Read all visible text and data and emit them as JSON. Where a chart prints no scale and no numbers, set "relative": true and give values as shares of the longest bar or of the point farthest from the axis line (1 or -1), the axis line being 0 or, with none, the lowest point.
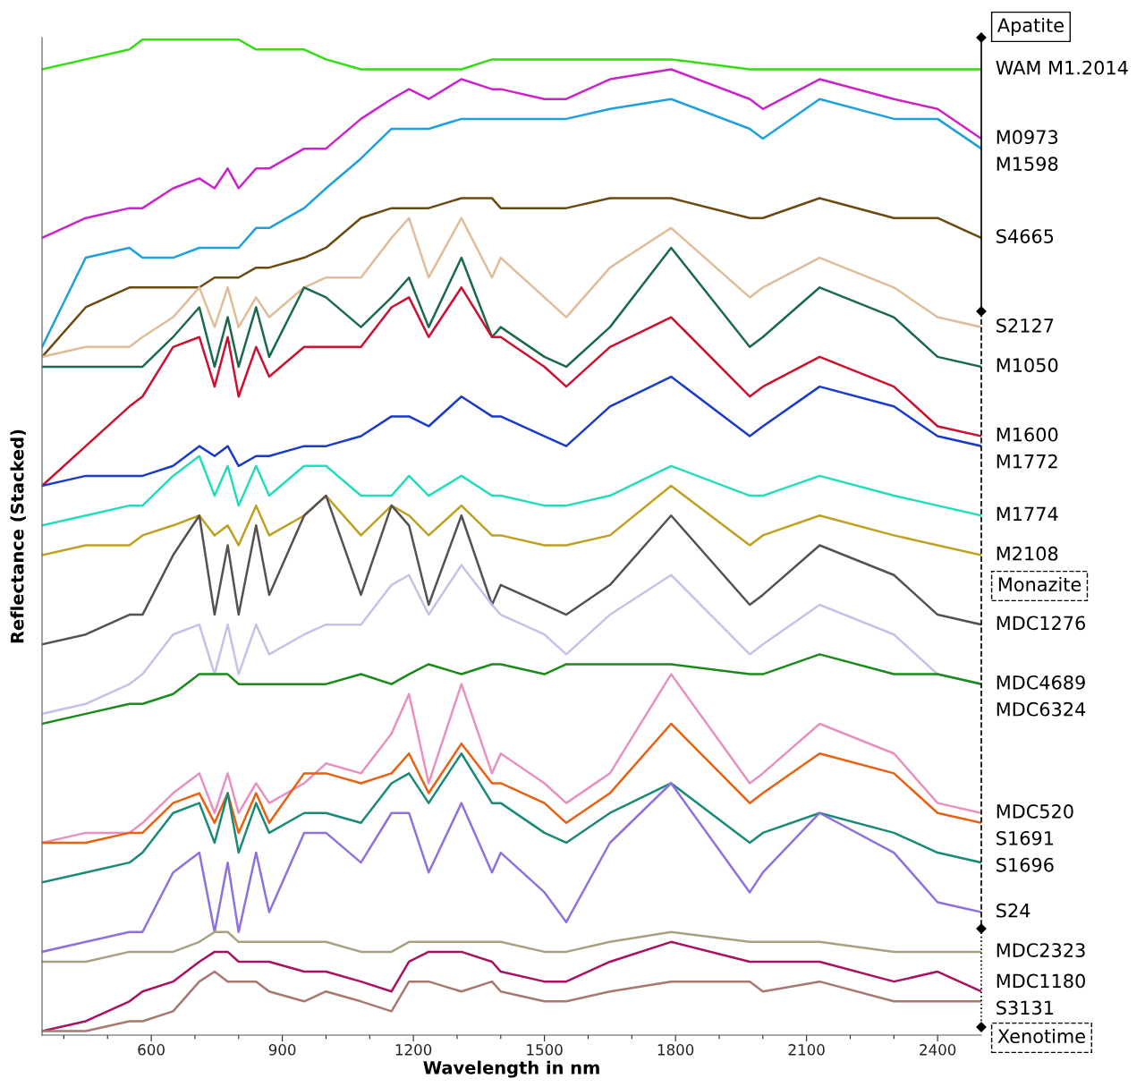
{
  "chart_data": {
    "type": "line",
    "relative": true,
    "xlabel": "Wavelength in nm",
    "ylabel": "Reflectance (Stacked)",
    "xlim": [
      350,
      2500
    ],
    "xticks": [
      {
        "value": 400,
        "label": null
      },
      {
        "value": 500,
        "label": null
      },
      600,
      {
        "value": 700,
        "label": null
      },
      {
        "value": 800,
        "label": null
      },
      900,
      {
        "value": 1000,
        "label": null
      },
      {
        "value": 1100,
        "label": null
      },
      1200,
      {
        "value": 1300,
        "label": null
      },
      {
        "value": 1400,
        "label": null
      },
      1500,
      {
        "value": 1600,
        "label": null
      },
      {
        "value": 1700,
        "label": null
      },
      1800,
      {
        "value": 1900,
        "label": null
      },
      {
        "value": 2000,
        "label": null
      },
      2100,
      {
        "value": 2200,
        "label": null
      },
      {
        "value": 2300,
        "label": null
      },
      2400
    ],
    "tick_labels": "x",
    "grid": false,
    "legend": false,
    "marker": "none",
    "line_style": "solid",
    "annotations": [
      "Apatite",
      "Monazite",
      "Xenotime"
    ],
    "x": [
      350,
      450,
      550,
      580,
      650,
      710,
      745,
      775,
      800,
      840,
      870,
      950,
      1000,
      1080,
      1150,
      1190,
      1235,
      1310,
      1380,
      1400,
      1500,
      1550,
      1650,
      1790,
      1970,
      2000,
      2130,
      2300,
      2400,
      2500
    ],
    "series": [
      {
        "name": "WAM M1.2014",
        "color": "#33dd11",
        "values": [
          0.97,
          0.98,
          0.99,
          1.0,
          1.0,
          1.0,
          1.0,
          1.0,
          1.0,
          0.99,
          0.99,
          0.99,
          0.98,
          0.97,
          0.97,
          0.97,
          0.97,
          0.97,
          0.98,
          0.98,
          0.98,
          0.98,
          0.98,
          0.98,
          0.97,
          0.97,
          0.97,
          0.97,
          0.97,
          0.97
        ]
      },
      {
        "name": "M0973",
        "color": "#cc22cc",
        "values": [
          0.8,
          0.82,
          0.83,
          0.83,
          0.85,
          0.86,
          0.85,
          0.87,
          0.85,
          0.87,
          0.87,
          0.89,
          0.89,
          0.92,
          0.94,
          0.95,
          0.94,
          0.96,
          0.95,
          0.95,
          0.94,
          0.94,
          0.96,
          0.97,
          0.94,
          0.93,
          0.96,
          0.94,
          0.93,
          0.9
        ]
      },
      {
        "name": "M1598",
        "color": "#1ca0e0",
        "values": [
          0.69,
          0.78,
          0.79,
          0.78,
          0.78,
          0.79,
          0.79,
          0.79,
          0.79,
          0.81,
          0.81,
          0.83,
          0.85,
          0.88,
          0.91,
          0.91,
          0.91,
          0.92,
          0.92,
          0.92,
          0.92,
          0.92,
          0.93,
          0.94,
          0.91,
          0.9,
          0.94,
          0.92,
          0.92,
          0.89
        ]
      },
      {
        "name": "S4665",
        "color": "#6b4a10",
        "values": [
          0.68,
          0.73,
          0.75,
          0.75,
          0.75,
          0.75,
          0.76,
          0.76,
          0.76,
          0.77,
          0.77,
          0.78,
          0.79,
          0.82,
          0.83,
          0.83,
          0.83,
          0.84,
          0.84,
          0.83,
          0.83,
          0.83,
          0.84,
          0.84,
          0.82,
          0.82,
          0.84,
          0.82,
          0.82,
          0.8
        ]
      },
      {
        "name": "S2127",
        "color": "#e0bc98",
        "values": [
          0.68,
          0.69,
          0.69,
          0.7,
          0.72,
          0.75,
          0.71,
          0.75,
          0.71,
          0.74,
          0.72,
          0.75,
          0.76,
          0.76,
          0.8,
          0.82,
          0.76,
          0.82,
          0.76,
          0.78,
          0.74,
          0.72,
          0.77,
          0.81,
          0.74,
          0.75,
          0.78,
          0.75,
          0.72,
          0.71
        ]
      },
      {
        "name": "M1050",
        "color": "#1a6a4a",
        "values": [
          0.67,
          0.67,
          0.67,
          0.67,
          0.7,
          0.73,
          0.67,
          0.72,
          0.67,
          0.73,
          0.68,
          0.75,
          0.74,
          0.71,
          0.74,
          0.76,
          0.71,
          0.78,
          0.7,
          0.71,
          0.68,
          0.67,
          0.71,
          0.79,
          0.69,
          0.7,
          0.75,
          0.72,
          0.68,
          0.67
        ]
      },
      {
        "name": "M1600",
        "color": "#cc1030",
        "values": [
          0.55,
          0.59,
          0.63,
          0.64,
          0.69,
          0.7,
          0.65,
          0.7,
          0.64,
          0.69,
          0.66,
          0.69,
          0.69,
          0.69,
          0.73,
          0.74,
          0.7,
          0.75,
          0.7,
          0.7,
          0.67,
          0.65,
          0.69,
          0.72,
          0.64,
          0.65,
          0.68,
          0.65,
          0.61,
          0.6
        ]
      },
      {
        "name": "M1772",
        "color": "#1a3acc",
        "values": [
          0.55,
          0.56,
          0.56,
          0.56,
          0.57,
          0.59,
          0.58,
          0.59,
          0.57,
          0.58,
          0.58,
          0.59,
          0.59,
          0.6,
          0.62,
          0.62,
          0.61,
          0.64,
          0.62,
          0.62,
          0.6,
          0.59,
          0.63,
          0.66,
          0.6,
          0.61,
          0.65,
          0.63,
          0.6,
          0.59
        ]
      },
      {
        "name": "M1774",
        "color": "#22ddbb",
        "values": [
          0.51,
          0.52,
          0.53,
          0.53,
          0.56,
          0.58,
          0.54,
          0.57,
          0.53,
          0.57,
          0.54,
          0.57,
          0.57,
          0.54,
          0.54,
          0.56,
          0.54,
          0.56,
          0.54,
          0.54,
          0.53,
          0.53,
          0.54,
          0.57,
          0.54,
          0.54,
          0.56,
          0.54,
          0.53,
          0.52
        ]
      },
      {
        "name": "M2108",
        "color": "#c0a020",
        "values": [
          0.48,
          0.49,
          0.49,
          0.5,
          0.51,
          0.52,
          0.5,
          0.51,
          0.49,
          0.53,
          0.5,
          0.52,
          0.54,
          0.5,
          0.53,
          0.52,
          0.5,
          0.53,
          0.5,
          0.5,
          0.49,
          0.49,
          0.5,
          0.55,
          0.49,
          0.5,
          0.52,
          0.5,
          0.49,
          0.48
        ]
      },
      {
        "name": "MDC1276",
        "color": "#555055",
        "values": [
          0.39,
          0.4,
          0.42,
          0.42,
          0.48,
          0.52,
          0.42,
          0.49,
          0.42,
          0.51,
          0.44,
          0.52,
          0.54,
          0.44,
          0.53,
          0.51,
          0.43,
          0.52,
          0.43,
          0.45,
          0.43,
          0.42,
          0.45,
          0.52,
          0.43,
          0.44,
          0.49,
          0.46,
          0.42,
          0.41
        ]
      },
      {
        "name": "MDC4689",
        "color": "#c8c0e8",
        "values": [
          0.32,
          0.33,
          0.35,
          0.36,
          0.4,
          0.41,
          0.36,
          0.41,
          0.36,
          0.41,
          0.38,
          0.4,
          0.41,
          0.41,
          0.45,
          0.46,
          0.42,
          0.47,
          0.43,
          0.42,
          0.4,
          0.38,
          0.42,
          0.46,
          0.38,
          0.39,
          0.43,
          0.4,
          0.36,
          0.35
        ]
      },
      {
        "name": "MDC6324",
        "color": "#1a8a1a",
        "values": [
          0.31,
          0.32,
          0.33,
          0.33,
          0.34,
          0.36,
          0.36,
          0.36,
          0.35,
          0.35,
          0.35,
          0.35,
          0.35,
          0.36,
          0.35,
          0.36,
          0.37,
          0.36,
          0.37,
          0.37,
          0.36,
          0.37,
          0.37,
          0.37,
          0.36,
          0.36,
          0.38,
          0.36,
          0.36,
          0.35
        ]
      },
      {
        "name": "MDC520",
        "color": "#e890c0",
        "values": [
          0.19,
          0.2,
          0.2,
          0.21,
          0.24,
          0.26,
          0.22,
          0.26,
          0.22,
          0.25,
          0.23,
          0.25,
          0.27,
          0.26,
          0.3,
          0.34,
          0.25,
          0.35,
          0.26,
          0.28,
          0.25,
          0.23,
          0.26,
          0.36,
          0.25,
          0.26,
          0.31,
          0.28,
          0.23,
          0.22
        ]
      },
      {
        "name": "S1691",
        "color": "#e86010",
        "values": [
          0.19,
          0.19,
          0.2,
          0.2,
          0.23,
          0.24,
          0.21,
          0.24,
          0.2,
          0.24,
          0.21,
          0.26,
          0.26,
          0.25,
          0.26,
          0.28,
          0.24,
          0.29,
          0.25,
          0.25,
          0.23,
          0.21,
          0.24,
          0.31,
          0.23,
          0.24,
          0.28,
          0.26,
          0.22,
          0.21
        ]
      },
      {
        "name": "S1696",
        "color": "#1a8a78",
        "values": [
          0.15,
          0.16,
          0.17,
          0.18,
          0.22,
          0.23,
          0.19,
          0.24,
          0.18,
          0.23,
          0.2,
          0.22,
          0.22,
          0.21,
          0.25,
          0.26,
          0.23,
          0.28,
          0.23,
          0.23,
          0.2,
          0.19,
          0.22,
          0.25,
          0.19,
          0.2,
          0.22,
          0.2,
          0.18,
          0.17
        ]
      },
      {
        "name": "S24",
        "color": "#9070e0",
        "values": [
          0.08,
          0.09,
          0.1,
          0.1,
          0.16,
          0.18,
          0.1,
          0.17,
          0.1,
          0.18,
          0.12,
          0.2,
          0.2,
          0.17,
          0.22,
          0.22,
          0.16,
          0.23,
          0.16,
          0.18,
          0.14,
          0.11,
          0.19,
          0.25,
          0.14,
          0.16,
          0.22,
          0.18,
          0.13,
          0.12
        ]
      },
      {
        "name": "MDC2323",
        "color": "#a8a080",
        "values": [
          0.07,
          0.07,
          0.08,
          0.08,
          0.08,
          0.09,
          0.1,
          0.1,
          0.09,
          0.09,
          0.09,
          0.09,
          0.09,
          0.08,
          0.08,
          0.09,
          0.09,
          0.09,
          0.09,
          0.09,
          0.08,
          0.08,
          0.09,
          0.1,
          0.09,
          0.09,
          0.09,
          0.08,
          0.08,
          0.08
        ]
      },
      {
        "name": "MDC1180",
        "color": "#aa1060",
        "values": [
          0.0,
          0.01,
          0.03,
          0.04,
          0.05,
          0.07,
          0.08,
          0.08,
          0.07,
          0.07,
          0.07,
          0.06,
          0.06,
          0.05,
          0.04,
          0.07,
          0.08,
          0.08,
          0.07,
          0.06,
          0.05,
          0.05,
          0.07,
          0.09,
          0.07,
          0.07,
          0.07,
          0.05,
          0.06,
          0.04
        ]
      },
      {
        "name": "S3131",
        "color": "#a87870",
        "values": [
          0.0,
          0.0,
          0.01,
          0.01,
          0.02,
          0.05,
          0.06,
          0.05,
          0.05,
          0.05,
          0.04,
          0.03,
          0.04,
          0.03,
          0.02,
          0.05,
          0.05,
          0.04,
          0.05,
          0.04,
          0.03,
          0.03,
          0.04,
          0.05,
          0.05,
          0.04,
          0.05,
          0.03,
          0.03,
          0.03
        ]
      }
    ]
  }
}
